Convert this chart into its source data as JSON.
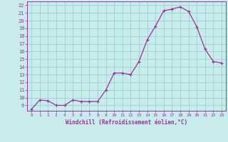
{
  "x": [
    0,
    1,
    2,
    3,
    4,
    5,
    6,
    7,
    8,
    9,
    10,
    11,
    12,
    13,
    14,
    15,
    16,
    17,
    18,
    19,
    20,
    21,
    22,
    23
  ],
  "y": [
    8.5,
    9.7,
    9.6,
    9.0,
    9.0,
    9.7,
    9.5,
    9.5,
    9.5,
    11.0,
    13.2,
    13.2,
    13.0,
    14.7,
    17.5,
    19.3,
    21.3,
    21.5,
    21.8,
    21.2,
    19.2,
    16.3,
    14.7,
    14.5
  ],
  "line_color": "#993399",
  "marker": "+",
  "bg_color": "#c8ecec",
  "grid_color": "#a0d4d4",
  "xlabel": "Windchill (Refroidissement éolien,°C)",
  "xlim": [
    -0.5,
    23.5
  ],
  "ylim": [
    8.3,
    22.5
  ],
  "yticks": [
    9,
    10,
    11,
    12,
    13,
    14,
    15,
    16,
    17,
    18,
    19,
    20,
    21,
    22
  ],
  "xticks": [
    0,
    1,
    2,
    3,
    4,
    5,
    6,
    7,
    8,
    9,
    10,
    11,
    12,
    13,
    14,
    15,
    16,
    17,
    18,
    19,
    20,
    21,
    22,
    23
  ],
  "tick_color": "#993399",
  "label_color": "#993399",
  "axis_color": "#993399"
}
